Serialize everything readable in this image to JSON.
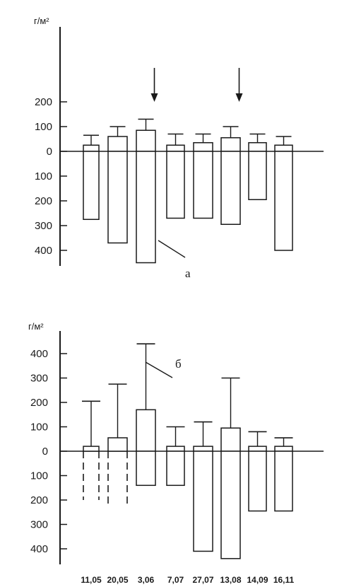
{
  "chart_data": [
    {
      "type": "bar",
      "unit_label": "г/м²",
      "letter_label": "а",
      "y_tick_labels": [
        "200",
        "100",
        "0",
        "100",
        "200",
        "300",
        "400"
      ],
      "y_tick_values": [
        200,
        100,
        0,
        -100,
        -200,
        -300,
        -400
      ],
      "ylim": [
        -450,
        200
      ],
      "positive_values": [
        25,
        60,
        85,
        25,
        35,
        55,
        35,
        25
      ],
      "positive_errors": [
        65,
        100,
        130,
        70,
        70,
        100,
        70,
        60
      ],
      "negative_values": [
        -275,
        -370,
        -450,
        -270,
        -270,
        -295,
        -195,
        -400
      ],
      "arrow_markers": [
        "3,06",
        "13,08"
      ],
      "grid": false
    },
    {
      "type": "bar",
      "unit_label": "г/м²",
      "letter_label": "б",
      "categories": [
        "11,05",
        "20,05",
        "3,06",
        "7,07",
        "27,07",
        "13,08",
        "14,09",
        "16,11"
      ],
      "y_tick_labels": [
        "400",
        "300",
        "200",
        "100",
        "0",
        "100",
        "200",
        "300",
        "400"
      ],
      "y_tick_values": [
        400,
        300,
        200,
        100,
        0,
        -100,
        -200,
        -300,
        -400
      ],
      "ylim": [
        -440,
        440
      ],
      "positive_values": [
        20,
        55,
        170,
        20,
        20,
        95,
        20,
        20
      ],
      "positive_errors": [
        205,
        275,
        440,
        100,
        120,
        300,
        80,
        55
      ],
      "negative_values": [
        -200,
        -230,
        -140,
        -140,
        -410,
        -440,
        -245,
        -245
      ],
      "negative_dashed": [
        true,
        true,
        false,
        false,
        false,
        false,
        false,
        false
      ],
      "grid": false
    }
  ]
}
